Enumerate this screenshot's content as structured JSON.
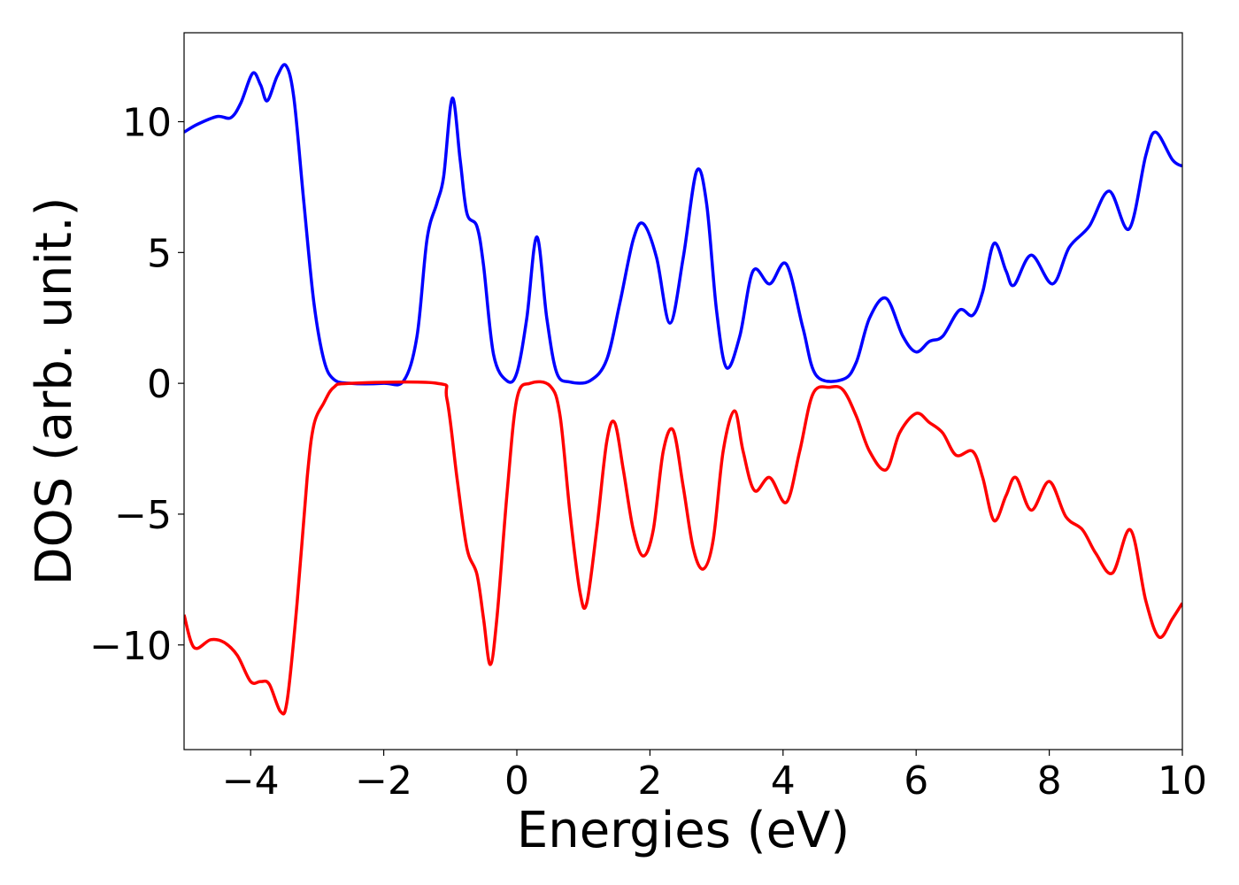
{
  "chart_data": {
    "type": "line",
    "title": "",
    "xlabel": "Energies (eV)",
    "ylabel": "DOS (arb. unit.)",
    "xlim": [
      -5,
      10
    ],
    "ylim": [
      -14,
      13.4
    ],
    "xticks": [
      -4,
      -2,
      0,
      2,
      4,
      6,
      8,
      10
    ],
    "xtick_labels": [
      "−4",
      "−2",
      "0",
      "2",
      "4",
      "6",
      "8",
      "10"
    ],
    "yticks": [
      -10,
      -5,
      0,
      5,
      10
    ],
    "ytick_labels": [
      "−10",
      "−5",
      "0",
      "5",
      "10"
    ],
    "grid": false,
    "series": [
      {
        "color": "#0000ff",
        "points": [
          [
            -5,
            9.6
          ],
          [
            -4.8,
            9.9
          ],
          [
            -4.5,
            10.2
          ],
          [
            -4.3,
            10.15
          ],
          [
            -4.15,
            10.7
          ],
          [
            -3.97,
            11.85
          ],
          [
            -3.85,
            11.4
          ],
          [
            -3.75,
            10.8
          ],
          [
            -3.6,
            11.75
          ],
          [
            -3.47,
            12.15
          ],
          [
            -3.35,
            10.9
          ],
          [
            -3.2,
            6.9
          ],
          [
            -3.05,
            3.1
          ],
          [
            -2.9,
            0.9
          ],
          [
            -2.75,
            0.15
          ],
          [
            -2.5,
            0
          ],
          [
            -2.0,
            0
          ],
          [
            -1.7,
            0.1
          ],
          [
            -1.5,
            1.8
          ],
          [
            -1.35,
            5.5
          ],
          [
            -1.2,
            6.9
          ],
          [
            -1.1,
            7.9
          ],
          [
            -0.97,
            10.9
          ],
          [
            -0.85,
            8.5
          ],
          [
            -0.75,
            6.5
          ],
          [
            -0.6,
            6.0
          ],
          [
            -0.5,
            4.5
          ],
          [
            -0.35,
            1.1
          ],
          [
            -0.15,
            0.1
          ],
          [
            0.0,
            0.4
          ],
          [
            0.15,
            2.5
          ],
          [
            0.3,
            5.6
          ],
          [
            0.45,
            2.5
          ],
          [
            0.6,
            0.4
          ],
          [
            0.8,
            0.05
          ],
          [
            1.1,
            0.1
          ],
          [
            1.35,
            0.9
          ],
          [
            1.55,
            3.1
          ],
          [
            1.75,
            5.5
          ],
          [
            1.9,
            6.1
          ],
          [
            2.1,
            4.8
          ],
          [
            2.3,
            2.3
          ],
          [
            2.5,
            4.8
          ],
          [
            2.7,
            8.1
          ],
          [
            2.85,
            6.9
          ],
          [
            3.0,
            2.8
          ],
          [
            3.15,
            0.6
          ],
          [
            3.35,
            1.8
          ],
          [
            3.55,
            4.3
          ],
          [
            3.8,
            3.8
          ],
          [
            4.05,
            4.55
          ],
          [
            4.3,
            2.1
          ],
          [
            4.5,
            0.3
          ],
          [
            4.9,
            0.15
          ],
          [
            5.1,
            0.8
          ],
          [
            5.3,
            2.5
          ],
          [
            5.55,
            3.25
          ],
          [
            5.8,
            1.8
          ],
          [
            6.0,
            1.2
          ],
          [
            6.2,
            1.6
          ],
          [
            6.4,
            1.8
          ],
          [
            6.65,
            2.8
          ],
          [
            6.85,
            2.6
          ],
          [
            7.0,
            3.5
          ],
          [
            7.17,
            5.35
          ],
          [
            7.35,
            4.3
          ],
          [
            7.47,
            3.75
          ],
          [
            7.73,
            4.9
          ],
          [
            8.05,
            3.8
          ],
          [
            8.3,
            5.2
          ],
          [
            8.6,
            6.0
          ],
          [
            8.9,
            7.35
          ],
          [
            9.2,
            5.9
          ],
          [
            9.45,
            8.7
          ],
          [
            9.6,
            9.6
          ],
          [
            9.85,
            8.55
          ],
          [
            10,
            8.3
          ]
        ]
      },
      {
        "color": "#ff0000",
        "points": [
          [
            -5,
            -8.85
          ],
          [
            -4.85,
            -10.1
          ],
          [
            -4.6,
            -9.8
          ],
          [
            -4.4,
            -9.9
          ],
          [
            -4.2,
            -10.4
          ],
          [
            -4.0,
            -11.4
          ],
          [
            -3.85,
            -11.4
          ],
          [
            -3.72,
            -11.5
          ],
          [
            -3.55,
            -12.55
          ],
          [
            -3.45,
            -12.1
          ],
          [
            -3.3,
            -8.35
          ],
          [
            -3.15,
            -3.6
          ],
          [
            -3.05,
            -1.6
          ],
          [
            -2.9,
            -0.75
          ],
          [
            -2.75,
            -0.15
          ],
          [
            -2.5,
            0
          ],
          [
            -1.2,
            0
          ],
          [
            -1.05,
            -0.6
          ],
          [
            -0.9,
            -3.6
          ],
          [
            -0.75,
            -6.3
          ],
          [
            -0.6,
            -7.3
          ],
          [
            -0.5,
            -9.0
          ],
          [
            -0.4,
            -10.75
          ],
          [
            -0.3,
            -9.0
          ],
          [
            -0.15,
            -4.3
          ],
          [
            0.0,
            -0.6
          ],
          [
            0.2,
            0
          ],
          [
            0.5,
            -0.1
          ],
          [
            0.65,
            -1.25
          ],
          [
            0.8,
            -5.0
          ],
          [
            0.95,
            -8.0
          ],
          [
            1.05,
            -8.4
          ],
          [
            1.2,
            -5.6
          ],
          [
            1.35,
            -2.25
          ],
          [
            1.47,
            -1.5
          ],
          [
            1.6,
            -3.3
          ],
          [
            1.75,
            -5.6
          ],
          [
            1.9,
            -6.6
          ],
          [
            2.05,
            -5.6
          ],
          [
            2.2,
            -2.6
          ],
          [
            2.35,
            -1.8
          ],
          [
            2.5,
            -3.95
          ],
          [
            2.65,
            -6.3
          ],
          [
            2.8,
            -7.1
          ],
          [
            2.95,
            -6.0
          ],
          [
            3.1,
            -2.6
          ],
          [
            3.27,
            -1.05
          ],
          [
            3.4,
            -2.6
          ],
          [
            3.57,
            -4.1
          ],
          [
            3.8,
            -3.6
          ],
          [
            4.05,
            -4.55
          ],
          [
            4.25,
            -2.6
          ],
          [
            4.45,
            -0.4
          ],
          [
            4.7,
            -0.15
          ],
          [
            4.9,
            -0.25
          ],
          [
            5.1,
            -1.25
          ],
          [
            5.3,
            -2.6
          ],
          [
            5.55,
            -3.3
          ],
          [
            5.75,
            -1.9
          ],
          [
            6.0,
            -1.15
          ],
          [
            6.2,
            -1.5
          ],
          [
            6.4,
            -1.9
          ],
          [
            6.6,
            -2.75
          ],
          [
            6.85,
            -2.6
          ],
          [
            7.0,
            -3.6
          ],
          [
            7.17,
            -5.25
          ],
          [
            7.35,
            -4.3
          ],
          [
            7.5,
            -3.6
          ],
          [
            7.73,
            -4.85
          ],
          [
            8.0,
            -3.75
          ],
          [
            8.25,
            -5.1
          ],
          [
            8.5,
            -5.6
          ],
          [
            8.7,
            -6.5
          ],
          [
            8.95,
            -7.25
          ],
          [
            9.22,
            -5.6
          ],
          [
            9.45,
            -8.3
          ],
          [
            9.65,
            -9.7
          ],
          [
            9.85,
            -9.0
          ],
          [
            10,
            -8.4
          ]
        ]
      }
    ]
  }
}
